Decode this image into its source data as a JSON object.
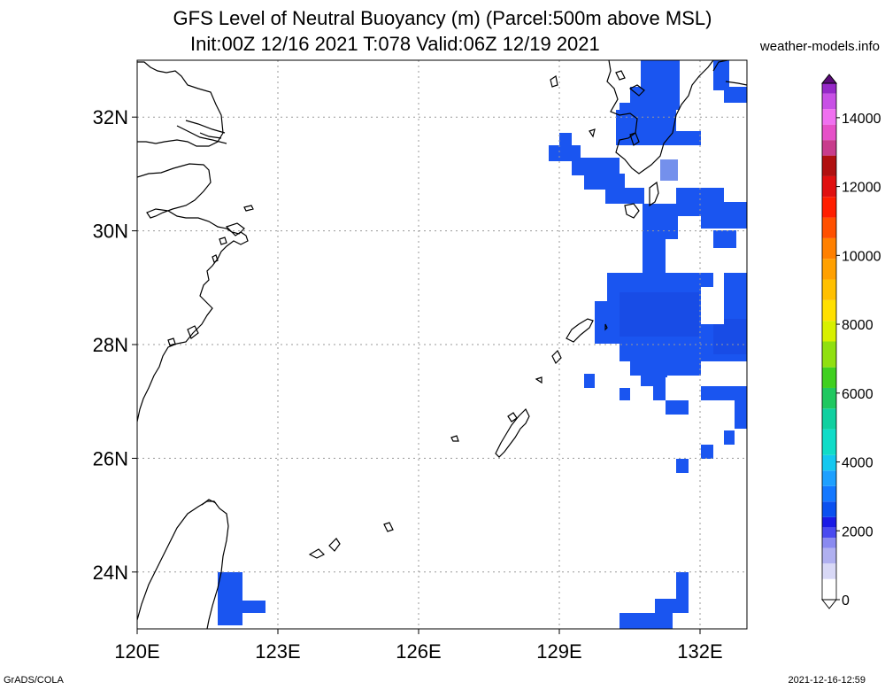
{
  "title": {
    "line1": "GFS Level of Neutral Buoyancy (m) (Parcel:500m above MSL)",
    "line2": "Init:00Z 12/16 2021 T:078 Valid:06Z 12/19 2021"
  },
  "credit": "weather-models.info",
  "footer": {
    "left": "GrADS/COLA",
    "right": "2021-12-16-12:59"
  },
  "map": {
    "lon_range": [
      120,
      133
    ],
    "lat_range": [
      23,
      33
    ],
    "lon_ticks": [
      {
        "value": 120,
        "label": "120E"
      },
      {
        "value": 123,
        "label": "123E"
      },
      {
        "value": 126,
        "label": "126E"
      },
      {
        "value": 129,
        "label": "129E"
      },
      {
        "value": 132,
        "label": "132E"
      }
    ],
    "lat_ticks": [
      {
        "value": 24,
        "label": "24N"
      },
      {
        "value": 26,
        "label": "26N"
      },
      {
        "value": 28,
        "label": "28N"
      },
      {
        "value": 30,
        "label": "30N"
      },
      {
        "value": 32,
        "label": "32N"
      }
    ],
    "grid": "dotted",
    "fill_color": "#1a55f0",
    "fill_color_dark": "#1746e0"
  },
  "colorbar": {
    "labels": [
      "0",
      "2000",
      "4000",
      "6000",
      "8000",
      "10000",
      "12000",
      "14000"
    ],
    "max": 15000
  }
}
